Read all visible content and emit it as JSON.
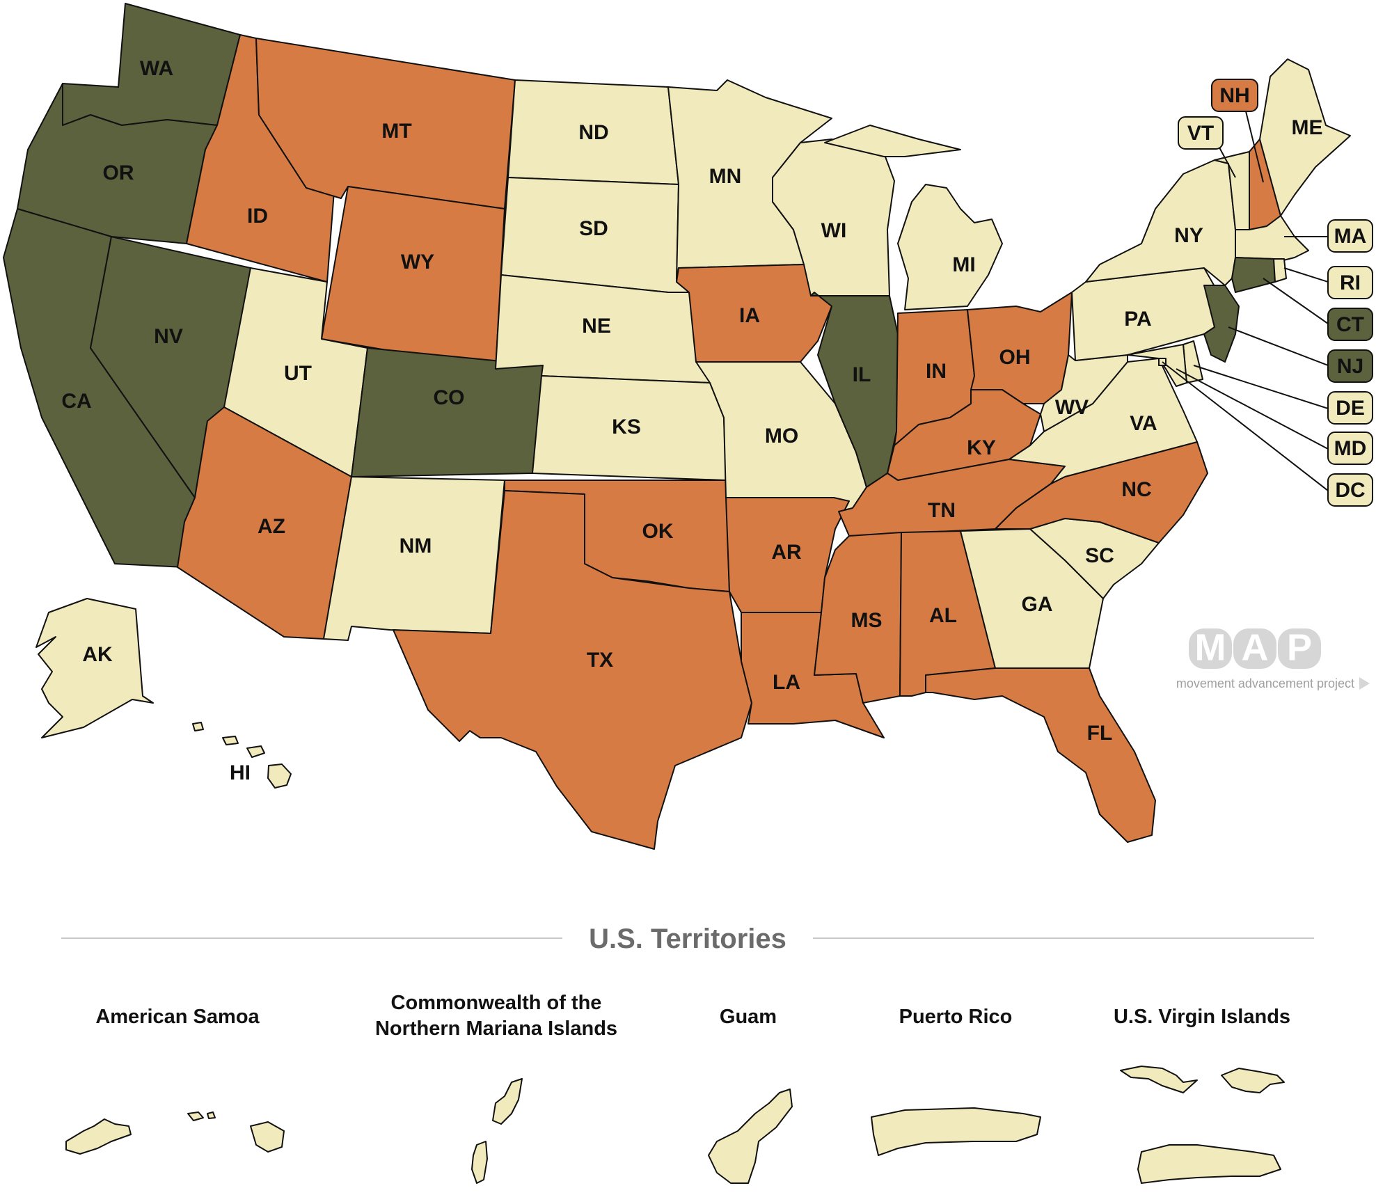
{
  "colors": {
    "dark": "#5b623d",
    "orange": "#d77b45",
    "cream": "#f1eabd",
    "outline": "#111111",
    "divider": "#c8c8c8",
    "title_gray": "#6b6b6b",
    "logo_gray": "#d6d6d6"
  },
  "states": [
    {
      "abbr": "WA",
      "color": "dark"
    },
    {
      "abbr": "OR",
      "color": "dark"
    },
    {
      "abbr": "CA",
      "color": "dark"
    },
    {
      "abbr": "NV",
      "color": "dark"
    },
    {
      "abbr": "ID",
      "color": "orange"
    },
    {
      "abbr": "MT",
      "color": "orange"
    },
    {
      "abbr": "WY",
      "color": "orange"
    },
    {
      "abbr": "UT",
      "color": "cream"
    },
    {
      "abbr": "CO",
      "color": "dark"
    },
    {
      "abbr": "AZ",
      "color": "orange"
    },
    {
      "abbr": "NM",
      "color": "cream"
    },
    {
      "abbr": "ND",
      "color": "cream"
    },
    {
      "abbr": "SD",
      "color": "cream"
    },
    {
      "abbr": "NE",
      "color": "cream"
    },
    {
      "abbr": "KS",
      "color": "cream"
    },
    {
      "abbr": "OK",
      "color": "orange"
    },
    {
      "abbr": "TX",
      "color": "orange"
    },
    {
      "abbr": "MN",
      "color": "cream"
    },
    {
      "abbr": "IA",
      "color": "orange"
    },
    {
      "abbr": "MO",
      "color": "cream"
    },
    {
      "abbr": "AR",
      "color": "orange"
    },
    {
      "abbr": "LA",
      "color": "orange"
    },
    {
      "abbr": "WI",
      "color": "cream"
    },
    {
      "abbr": "IL",
      "color": "dark"
    },
    {
      "abbr": "MI",
      "color": "cream"
    },
    {
      "abbr": "IN",
      "color": "orange"
    },
    {
      "abbr": "OH",
      "color": "orange"
    },
    {
      "abbr": "KY",
      "color": "orange"
    },
    {
      "abbr": "TN",
      "color": "orange"
    },
    {
      "abbr": "MS",
      "color": "orange"
    },
    {
      "abbr": "AL",
      "color": "orange"
    },
    {
      "abbr": "GA",
      "color": "cream"
    },
    {
      "abbr": "FL",
      "color": "orange"
    },
    {
      "abbr": "SC",
      "color": "cream"
    },
    {
      "abbr": "NC",
      "color": "orange"
    },
    {
      "abbr": "VA",
      "color": "cream"
    },
    {
      "abbr": "WV",
      "color": "cream"
    },
    {
      "abbr": "PA",
      "color": "cream"
    },
    {
      "abbr": "NY",
      "color": "cream"
    },
    {
      "abbr": "ME",
      "color": "cream"
    },
    {
      "abbr": "AK",
      "color": "cream"
    },
    {
      "abbr": "HI",
      "color": "cream"
    },
    {
      "abbr": "NH",
      "color": "orange"
    },
    {
      "abbr": "VT",
      "color": "cream"
    },
    {
      "abbr": "MA",
      "color": "cream"
    },
    {
      "abbr": "RI",
      "color": "cream"
    },
    {
      "abbr": "CT",
      "color": "dark"
    },
    {
      "abbr": "NJ",
      "color": "dark"
    },
    {
      "abbr": "DE",
      "color": "cream"
    },
    {
      "abbr": "MD",
      "color": "cream"
    },
    {
      "abbr": "DC",
      "color": "cream"
    }
  ],
  "territories_title": "U.S. Territories",
  "territories": [
    {
      "name": "American Samoa",
      "color": "cream"
    },
    {
      "name_line1": "Commonwealth of the",
      "name_line2": "Northern Mariana Islands",
      "color": "cream"
    },
    {
      "name": "Guam",
      "color": "cream"
    },
    {
      "name": "Puerto Rico",
      "color": "cream"
    },
    {
      "name": "U.S. Virgin Islands",
      "color": "cream"
    }
  ],
  "logo": {
    "letters": [
      "M",
      "A",
      "P"
    ],
    "tagline": "movement advancement project"
  }
}
